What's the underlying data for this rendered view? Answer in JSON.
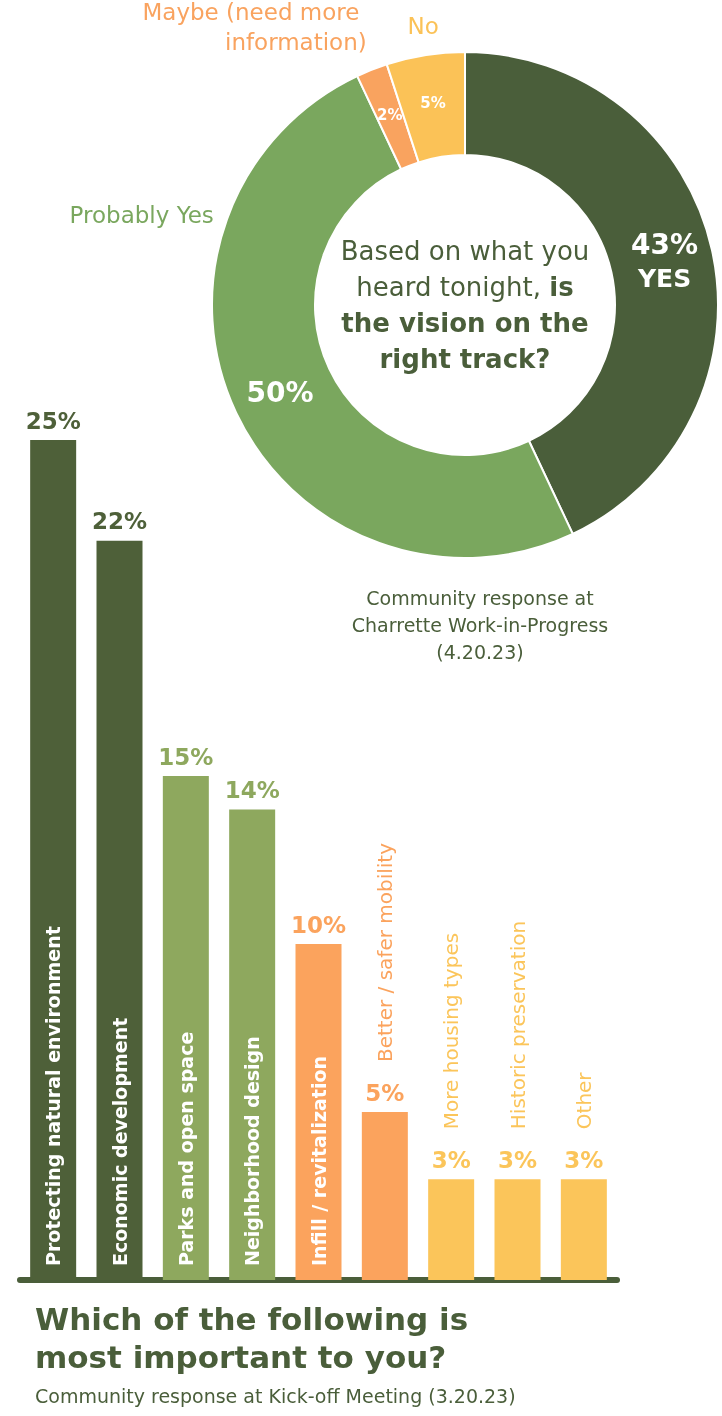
{
  "chart_data": [
    {
      "type": "donut",
      "title": "Based on what you heard tonight,",
      "subtitle": "is the vision on the right track?",
      "categories": [
        "YES",
        "Probably Yes",
        "Maybe (need more information)",
        "No"
      ],
      "values": [
        43,
        50,
        2,
        5
      ],
      "colors": [
        "#4a5e3a",
        "#7aa75e",
        "#f9a35f",
        "#fbc257"
      ],
      "value_labels": [
        "43%",
        "50%",
        "2%",
        "5%"
      ],
      "annotations": [
        "Community response at Charrette Work-in-Progress (4.20.23)"
      ]
    },
    {
      "type": "bar",
      "title": "Which of the following is most important to you?",
      "subtitle": "Community response at Kick-off Meeting (3.20.23)",
      "categories": [
        "Protecting natural environment",
        "Economic development",
        "Parks and open space",
        "Neighborhood design",
        "Infill / revitalization",
        "Better / safer mobility",
        "More housing types",
        "Historic preservation",
        "Other"
      ],
      "values": [
        25,
        22,
        15,
        14,
        10,
        5,
        3,
        3,
        3
      ],
      "colors": [
        "#4e6039",
        "#4e6039",
        "#8ea85e",
        "#8ea85e",
        "#fba35d",
        "#fba35d",
        "#fbc55a",
        "#fbc55a",
        "#fbc55a"
      ],
      "value_labels": [
        "25%",
        "22%",
        "15%",
        "14%",
        "10%",
        "5%",
        "3%",
        "3%",
        "3%"
      ],
      "ylim": [
        0,
        25
      ],
      "tick_labels": false
    }
  ]
}
